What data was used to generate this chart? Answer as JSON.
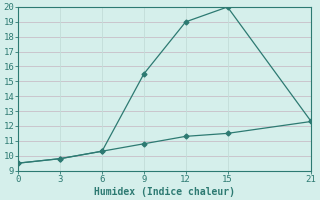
{
  "xlabel": "Humidex (Indice chaleur)",
  "x_upper": [
    0,
    3,
    6,
    9,
    12,
    15,
    21
  ],
  "y_upper": [
    9.5,
    9.8,
    10.3,
    15.5,
    19.0,
    20.0,
    12.3
  ],
  "x_lower": [
    0,
    3,
    6,
    9,
    12,
    15,
    21
  ],
  "y_lower": [
    9.5,
    9.8,
    10.3,
    10.8,
    11.3,
    11.5,
    12.3
  ],
  "line_color": "#2d7a72",
  "marker": "D",
  "marker_size": 2.5,
  "bg_color": "#d5efeb",
  "grid_h_color": "#c8bfc8",
  "grid_v_color": "#c2ddd8",
  "xlim": [
    0,
    21
  ],
  "ylim": [
    9,
    20
  ],
  "xticks": [
    0,
    3,
    6,
    9,
    12,
    15,
    21
  ],
  "yticks": [
    9,
    10,
    11,
    12,
    13,
    14,
    15,
    16,
    17,
    18,
    19,
    20
  ],
  "tick_fontsize": 6.5,
  "xlabel_fontsize": 7.0
}
